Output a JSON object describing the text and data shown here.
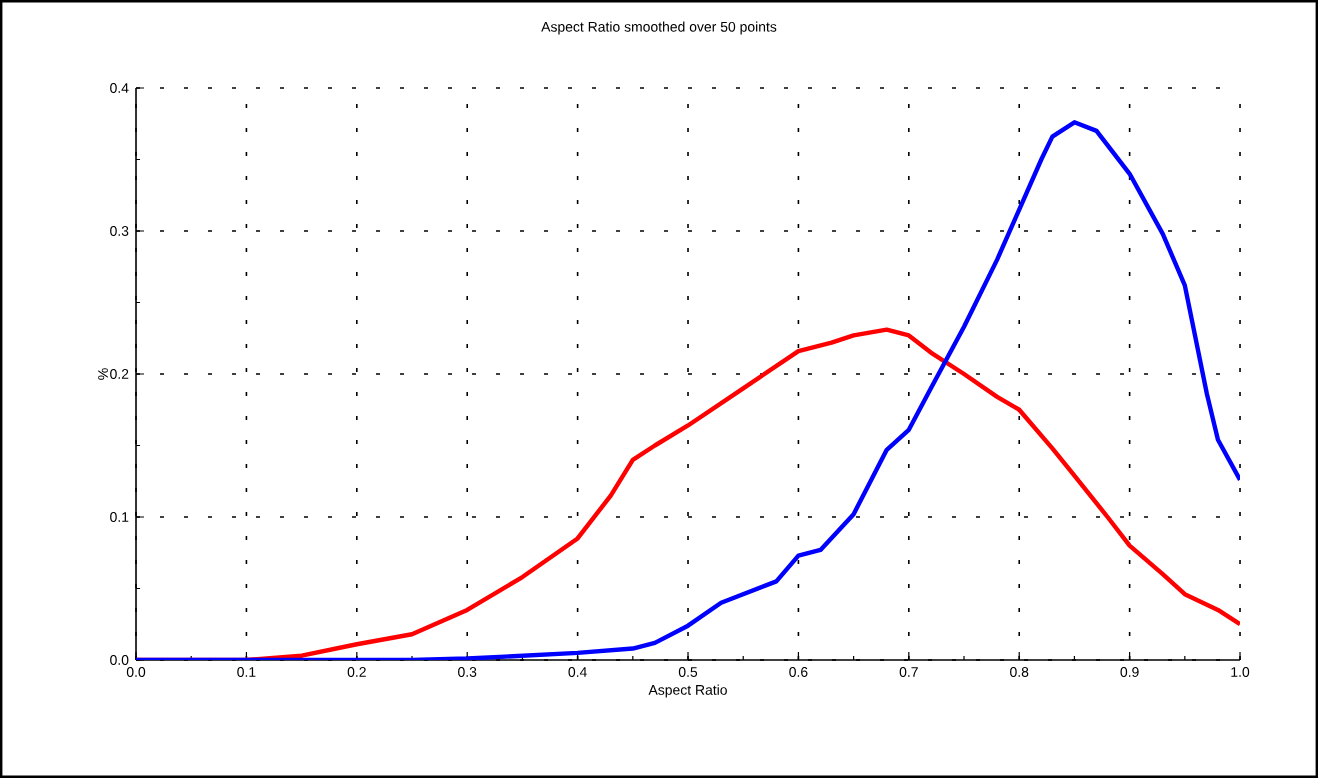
{
  "chart_data": {
    "type": "line",
    "title": "Aspect Ratio smoothed over 50 points",
    "xlabel": "Aspect Ratio",
    "ylabel": "%",
    "xlim": [
      0,
      1
    ],
    "ylim": [
      0,
      0.4
    ],
    "xticks": [
      {
        "value": 0,
        "label": "0.0"
      },
      0.1,
      0.2,
      0.3,
      0.4,
      0.5,
      0.6,
      0.7,
      0.8,
      0.9,
      {
        "value": 1,
        "label": "1.0"
      }
    ],
    "yticks": [
      {
        "value": 0,
        "label": "0.0"
      },
      0.1,
      0.2,
      0.3,
      0.4
    ],
    "grid": true,
    "marker": "none",
    "line_style": "solid",
    "series": [
      {
        "color": "#ff0000",
        "x": [
          0,
          0.1,
          0.15,
          0.2,
          0.25,
          0.3,
          0.35,
          0.4,
          0.43,
          0.45,
          0.47,
          0.5,
          0.55,
          0.6,
          0.63,
          0.65,
          0.68,
          0.7,
          0.72,
          0.75,
          0.78,
          0.8,
          0.83,
          0.85,
          0.88,
          0.9,
          0.93,
          0.95,
          0.98,
          1.0
        ],
        "values": [
          0,
          0,
          0.003,
          0.011,
          0.018,
          0.035,
          0.058,
          0.085,
          0.115,
          0.14,
          0.15,
          0.164,
          0.19,
          0.216,
          0.222,
          0.227,
          0.231,
          0.227,
          0.215,
          0.2,
          0.184,
          0.175,
          0.148,
          0.129,
          0.1,
          0.08,
          0.06,
          0.046,
          0.035,
          0.025
        ]
      },
      {
        "color": "#0000ff",
        "x": [
          0,
          0.25,
          0.3,
          0.35,
          0.4,
          0.45,
          0.47,
          0.5,
          0.53,
          0.55,
          0.58,
          0.6,
          0.62,
          0.65,
          0.68,
          0.7,
          0.72,
          0.75,
          0.78,
          0.8,
          0.82,
          0.83,
          0.85,
          0.87,
          0.9,
          0.93,
          0.95,
          0.97,
          0.98,
          1.0
        ],
        "values": [
          0,
          0,
          0.001,
          0.003,
          0.005,
          0.008,
          0.012,
          0.024,
          0.04,
          0.046,
          0.055,
          0.073,
          0.077,
          0.102,
          0.147,
          0.161,
          0.19,
          0.233,
          0.28,
          0.315,
          0.35,
          0.366,
          0.376,
          0.37,
          0.34,
          0.298,
          0.262,
          0.186,
          0.154,
          0.126
        ]
      }
    ]
  }
}
